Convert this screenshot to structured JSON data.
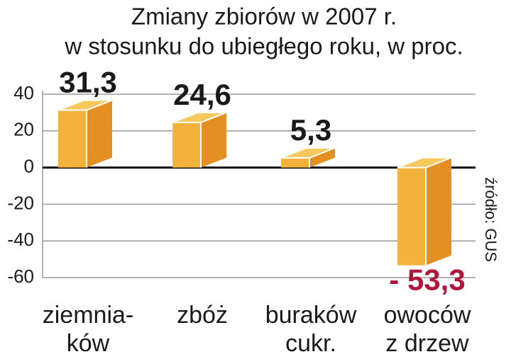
{
  "chart_data": {
    "type": "bar",
    "title": [
      "Zmiany zbiorów w 2007 r.",
      "w stosunku do ubiegłego roku, w proc."
    ],
    "categories": [
      [
        "ziemnia-",
        "ków"
      ],
      [
        "zbóż"
      ],
      [
        "buraków",
        "cukr."
      ],
      [
        "owoców",
        "z drzew"
      ]
    ],
    "values": [
      31.3,
      24.6,
      5.3,
      -53.3
    ],
    "value_labels": [
      "31,3",
      "24,6",
      "5,3",
      "- 53,3"
    ],
    "color": "#f2b23c",
    "label_color": "#1a1a1a",
    "negative_label_color": "#b0163c",
    "ylim": [
      -60,
      40
    ],
    "yticks": [
      40,
      20,
      0,
      -20,
      -40,
      -60
    ],
    "grid": true,
    "source": "źródło: GUS"
  }
}
